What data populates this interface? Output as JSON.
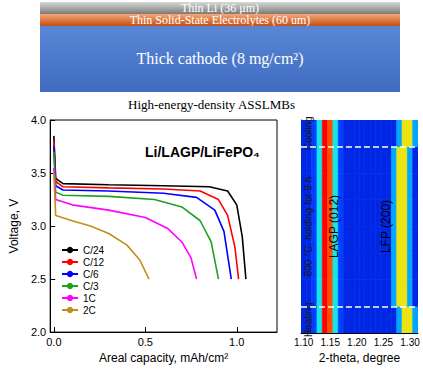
{
  "diagram": {
    "layers": [
      "Thin Li (36 μm)",
      "Thin Solid-State Electrolytes (60 um)",
      "Thick cathode (8 mg/cm²)"
    ],
    "caption": "High-energy-density ASSLMBs"
  },
  "chart_data": [
    {
      "type": "line",
      "title": "Li/LAGP/LiFePO₄",
      "x_label": "Areal capacity, mAh/cm²",
      "y_label": "Voltage, V",
      "xlim": [
        -0.02,
        1.22
      ],
      "xticks": [
        {
          "value": 0,
          "label": "0.0"
        },
        0.5,
        {
          "value": 1,
          "label": "1.0"
        }
      ],
      "ylim": [
        2,
        4
      ],
      "yticks": [
        {
          "value": 2,
          "label": "2.0"
        },
        2.5,
        {
          "value": 3,
          "label": "3.0"
        },
        3.5,
        {
          "value": 4,
          "label": "4.0"
        }
      ],
      "grid": false,
      "legend": "lower left",
      "series": [
        {
          "name": "C/24",
          "color": "#000000",
          "x": [
            0,
            0.01,
            0.05,
            0.3,
            0.6,
            0.85,
            0.95,
            1.0,
            1.03,
            1.05
          ],
          "values": [
            3.85,
            3.45,
            3.4,
            3.39,
            3.38,
            3.37,
            3.33,
            3.2,
            2.9,
            2.5
          ]
        },
        {
          "name": "C/12",
          "color": "#ff0000",
          "x": [
            0,
            0.01,
            0.05,
            0.3,
            0.6,
            0.8,
            0.9,
            0.95,
            0.99,
            1.01
          ],
          "values": [
            3.8,
            3.42,
            3.37,
            3.36,
            3.35,
            3.33,
            3.25,
            3.1,
            2.8,
            2.5
          ]
        },
        {
          "name": "C/6",
          "color": "#0000ff",
          "x": [
            0,
            0.01,
            0.05,
            0.3,
            0.6,
            0.78,
            0.88,
            0.93,
            0.97
          ],
          "values": [
            3.75,
            3.38,
            3.34,
            3.33,
            3.31,
            3.27,
            3.15,
            2.95,
            2.5
          ]
        },
        {
          "name": "C/3",
          "color": "#1fa01f",
          "x": [
            0,
            0.01,
            0.05,
            0.3,
            0.55,
            0.7,
            0.8,
            0.86,
            0.9
          ],
          "values": [
            3.7,
            3.32,
            3.29,
            3.28,
            3.25,
            3.18,
            3.05,
            2.85,
            2.5
          ]
        },
        {
          "name": "1C",
          "color": "#ff00ff",
          "x": [
            0,
            0.01,
            0.1,
            0.3,
            0.5,
            0.62,
            0.7,
            0.75,
            0.78
          ],
          "values": [
            3.55,
            3.25,
            3.2,
            3.15,
            3.08,
            2.98,
            2.85,
            2.7,
            2.5
          ]
        },
        {
          "name": "2C",
          "color": "#c09018",
          "x": [
            0,
            0.01,
            0.1,
            0.2,
            0.3,
            0.4,
            0.47,
            0.52
          ],
          "values": [
            3.5,
            3.1,
            3.05,
            3.0,
            2.93,
            2.82,
            2.68,
            2.5
          ]
        }
      ]
    },
    {
      "type": "heatmap",
      "x_label": "2-theta, degree",
      "x": [
        1.1,
        1.11,
        1.12,
        1.13,
        1.14,
        1.15,
        1.16,
        1.17,
        1.18,
        1.19,
        1.2,
        1.21,
        1.22,
        1.23,
        1.24,
        1.25,
        1.26,
        1.27,
        1.28,
        1.29,
        1.3,
        1.31
      ],
      "xlim": [
        1.095,
        1.315
      ],
      "xticks": [
        {
          "value": 1.1,
          "label": "1.10"
        },
        1.15,
        {
          "value": 1.2,
          "label": "1.20"
        },
        1.25,
        {
          "value": 1.3,
          "label": "1.30"
        }
      ],
      "ylim": [
        0,
        8
      ],
      "tick_labels": "x",
      "zlim": [
        0,
        10
      ],
      "cells": [
        [
          1,
          1,
          1.5,
          4,
          10,
          9,
          4,
          1.5,
          1,
          1,
          1,
          1,
          1,
          1,
          1,
          1,
          1,
          1,
          3,
          7,
          7,
          3
        ],
        [
          1,
          1,
          1.5,
          4,
          10,
          9,
          4,
          1.5,
          1,
          1,
          1,
          1,
          1,
          1,
          1,
          1,
          1,
          3,
          7,
          7,
          3,
          1
        ],
        [
          1,
          1,
          1.5,
          4,
          10,
          9,
          4,
          1.5,
          1,
          1,
          1,
          1,
          1,
          1,
          1,
          1,
          1,
          3,
          7,
          7,
          3,
          1
        ],
        [
          1,
          1,
          1.5,
          4,
          10,
          9,
          4,
          1.5,
          1,
          1,
          1,
          1,
          1,
          1,
          1,
          1,
          1,
          3,
          7,
          7,
          3,
          1
        ],
        [
          1,
          1,
          1.5,
          4,
          10,
          9,
          4,
          1.5,
          1,
          1,
          1,
          1,
          1,
          1,
          1,
          1,
          1,
          3,
          7,
          7,
          3,
          1
        ],
        [
          1,
          1,
          1.5,
          4,
          10,
          9,
          4,
          1.5,
          1,
          1,
          1,
          1,
          1,
          1,
          1,
          1,
          1,
          3,
          7,
          7,
          3,
          1
        ],
        [
          1,
          1,
          1.5,
          4,
          10,
          9,
          4,
          1.5,
          1,
          1,
          1,
          1,
          1,
          1,
          1,
          1,
          1,
          3,
          7,
          7,
          3,
          1
        ],
        [
          1,
          1,
          1.5,
          4,
          10,
          9,
          4,
          1.5,
          1,
          1,
          1,
          1,
          1,
          1,
          1,
          1,
          1,
          1,
          3,
          7,
          7,
          3
        ]
      ],
      "phases": [
        {
          "label": "Heating",
          "ylim": [
            0,
            1
          ]
        },
        {
          "label": "800 °C, holding for 9 h",
          "ylim": [
            1,
            7
          ]
        },
        {
          "label": "Cooling",
          "ylim": [
            7,
            8
          ]
        }
      ],
      "annotations": [
        {
          "text": "LAGP (012)",
          "x": 1.157
        },
        {
          "text": "LFP (200)",
          "x": 1.255
        }
      ]
    }
  ]
}
